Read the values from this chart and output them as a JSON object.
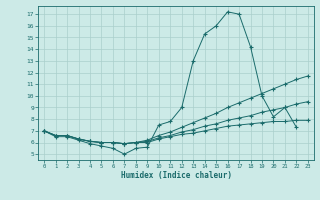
{
  "xlabel": "Humidex (Indice chaleur)",
  "background_color": "#cceae7",
  "grid_color": "#aacfcc",
  "line_color": "#1a6b6b",
  "xticks": [
    0,
    1,
    2,
    3,
    4,
    5,
    6,
    7,
    8,
    9,
    10,
    11,
    12,
    13,
    14,
    15,
    16,
    17,
    18,
    19,
    20,
    21,
    22,
    23
  ],
  "yticks": [
    5,
    6,
    7,
    8,
    9,
    10,
    11,
    12,
    13,
    14,
    15,
    16,
    17
  ],
  "xlim": [
    -0.5,
    23.5
  ],
  "ylim": [
    4.5,
    17.7
  ],
  "s1_x": [
    0,
    1,
    2,
    3,
    4,
    5,
    6,
    7,
    8,
    9,
    10,
    11,
    12,
    13,
    14,
    15,
    16,
    17,
    18,
    19,
    20,
    21,
    22
  ],
  "s1_y": [
    7.0,
    6.5,
    6.5,
    6.2,
    5.9,
    5.7,
    5.5,
    5.0,
    5.5,
    5.6,
    7.5,
    7.8,
    9.0,
    13.0,
    15.3,
    16.0,
    17.2,
    17.0,
    14.2,
    10.0,
    8.2,
    9.0,
    7.3
  ],
  "s2_x": [
    0,
    1,
    2,
    3,
    4,
    5,
    6,
    7,
    8,
    9,
    10,
    11,
    12,
    13,
    14,
    15,
    16,
    17,
    18,
    19,
    20,
    21,
    22,
    23
  ],
  "s2_y": [
    7.0,
    6.6,
    6.6,
    6.3,
    6.1,
    6.0,
    6.0,
    5.9,
    6.0,
    6.2,
    6.6,
    6.9,
    7.3,
    7.7,
    8.1,
    8.5,
    9.0,
    9.4,
    9.8,
    10.2,
    10.6,
    11.0,
    11.4,
    11.7
  ],
  "s3_x": [
    0,
    1,
    2,
    3,
    4,
    5,
    6,
    7,
    8,
    9,
    10,
    11,
    12,
    13,
    14,
    15,
    16,
    17,
    18,
    19,
    20,
    21,
    22,
    23
  ],
  "s3_y": [
    7.0,
    6.6,
    6.6,
    6.3,
    6.1,
    6.0,
    6.0,
    5.9,
    6.0,
    6.1,
    6.4,
    6.6,
    6.9,
    7.1,
    7.4,
    7.6,
    7.9,
    8.1,
    8.3,
    8.6,
    8.8,
    9.0,
    9.3,
    9.5
  ],
  "s4_x": [
    0,
    1,
    2,
    3,
    4,
    5,
    6,
    7,
    8,
    9,
    10,
    11,
    12,
    13,
    14,
    15,
    16,
    17,
    18,
    19,
    20,
    21,
    22,
    23
  ],
  "s4_y": [
    7.0,
    6.6,
    6.6,
    6.3,
    6.1,
    6.0,
    6.0,
    5.9,
    6.0,
    6.0,
    6.3,
    6.5,
    6.7,
    6.8,
    7.0,
    7.2,
    7.4,
    7.5,
    7.6,
    7.7,
    7.8,
    7.8,
    7.9,
    7.9
  ]
}
